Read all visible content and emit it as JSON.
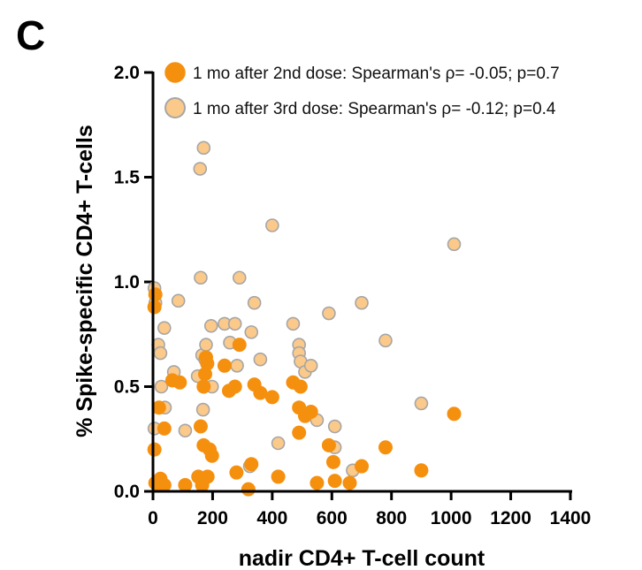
{
  "panel_label": "C",
  "chart_data": {
    "type": "scatter",
    "xlabel": "nadir CD4+ T-cell count",
    "ylabel": "% Spike-specific CD4+ T-cells",
    "xlim": [
      0,
      1400
    ],
    "ylim": [
      0,
      2.0
    ],
    "x_ticks": [
      "0",
      "200",
      "400",
      "600",
      "800",
      "1000",
      "1200",
      "1400"
    ],
    "y_ticks": [
      "0.0",
      "0.5",
      "1.0",
      "1.5",
      "2.0"
    ],
    "legend_placement": "top-right",
    "grid": false,
    "series": [
      {
        "name": "1 mo after 2nd dose: Spearman's ρ= -0.05; p=0.7",
        "color": "#f5900f",
        "edge": "#f5900f",
        "points": [
          [
            8,
            0.94
          ],
          [
            5,
            0.88
          ],
          [
            5,
            0.2
          ],
          [
            8,
            0.04
          ],
          [
            20,
            0.4
          ],
          [
            25,
            0.06
          ],
          [
            30,
            0.03
          ],
          [
            38,
            0.3
          ],
          [
            38,
            0.03
          ],
          [
            65,
            0.53
          ],
          [
            90,
            0.52
          ],
          [
            108,
            0.03
          ],
          [
            152,
            0.07
          ],
          [
            160,
            0.31
          ],
          [
            165,
            0.03
          ],
          [
            170,
            0.5
          ],
          [
            170,
            0.22
          ],
          [
            175,
            0.56
          ],
          [
            178,
            0.64
          ],
          [
            182,
            0.61
          ],
          [
            183,
            0.07
          ],
          [
            190,
            0.2
          ],
          [
            198,
            0.17
          ],
          [
            240,
            0.6
          ],
          [
            255,
            0.48
          ],
          [
            275,
            0.5
          ],
          [
            280,
            0.09
          ],
          [
            290,
            0.7
          ],
          [
            320,
            0.01
          ],
          [
            330,
            0.13
          ],
          [
            340,
            0.51
          ],
          [
            360,
            0.47
          ],
          [
            400,
            0.45
          ],
          [
            420,
            0.07
          ],
          [
            470,
            0.52
          ],
          [
            490,
            0.28
          ],
          [
            495,
            0.5
          ],
          [
            490,
            0.4
          ],
          [
            510,
            0.36
          ],
          [
            530,
            0.38
          ],
          [
            550,
            0.04
          ],
          [
            590,
            0.22
          ],
          [
            605,
            0.14
          ],
          [
            610,
            0.05
          ],
          [
            660,
            0.04
          ],
          [
            700,
            0.12
          ],
          [
            780,
            0.21
          ],
          [
            900,
            0.1
          ],
          [
            1010,
            0.37
          ]
        ]
      },
      {
        "name": "1 mo after 3rd dose: Spearman's ρ= -0.12; p=0.4",
        "color": "#fbc98a",
        "edge": "#a6a6a6",
        "points": [
          [
            5,
            0.97
          ],
          [
            8,
            0.9
          ],
          [
            18,
            0.7
          ],
          [
            25,
            0.66
          ],
          [
            28,
            0.5
          ],
          [
            38,
            0.78
          ],
          [
            40,
            0.4
          ],
          [
            5,
            0.3
          ],
          [
            18,
            0.05
          ],
          [
            20,
            0.03
          ],
          [
            70,
            0.57
          ],
          [
            85,
            0.91
          ],
          [
            108,
            0.29
          ],
          [
            150,
            0.55
          ],
          [
            158,
            1.54
          ],
          [
            160,
            1.02
          ],
          [
            165,
            0.65
          ],
          [
            170,
            1.64
          ],
          [
            168,
            0.39
          ],
          [
            175,
            0.63
          ],
          [
            178,
            0.7
          ],
          [
            195,
            0.79
          ],
          [
            198,
            0.5
          ],
          [
            240,
            0.8
          ],
          [
            258,
            0.71
          ],
          [
            275,
            0.8
          ],
          [
            282,
            0.6
          ],
          [
            290,
            1.02
          ],
          [
            325,
            0.12
          ],
          [
            330,
            0.76
          ],
          [
            340,
            0.9
          ],
          [
            360,
            0.63
          ],
          [
            400,
            1.27
          ],
          [
            420,
            0.23
          ],
          [
            470,
            0.8
          ],
          [
            490,
            0.7
          ],
          [
            490,
            0.66
          ],
          [
            495,
            0.62
          ],
          [
            510,
            0.57
          ],
          [
            530,
            0.6
          ],
          [
            550,
            0.34
          ],
          [
            590,
            0.85
          ],
          [
            610,
            0.31
          ],
          [
            610,
            0.21
          ],
          [
            670,
            0.1
          ],
          [
            700,
            0.9
          ],
          [
            780,
            0.72
          ],
          [
            900,
            0.42
          ],
          [
            1010,
            1.18
          ]
        ]
      }
    ]
  }
}
